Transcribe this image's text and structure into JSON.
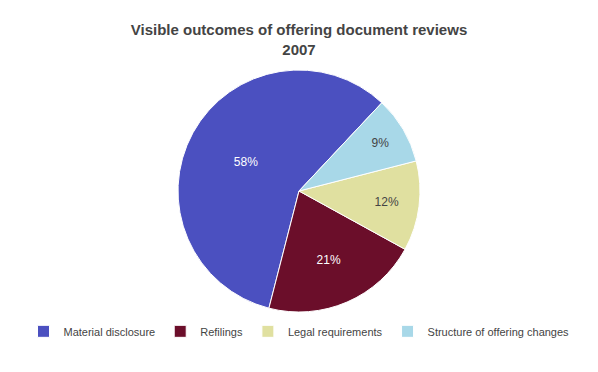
{
  "chart_data": {
    "type": "pie",
    "title": "Visible outcomes of offering document reviews\n2007",
    "categories": [
      "Material disclosure",
      "Refilings",
      "Legal requirements",
      "Structure of offering changes"
    ],
    "values": [
      58,
      21,
      12,
      9
    ],
    "value_labels": [
      "58%",
      "21%",
      "12%",
      "9%"
    ],
    "colors": [
      "#4B50C0",
      "#6B0E2A",
      "#E0E0A0",
      "#A8D8E8"
    ],
    "data_labels": true,
    "legend": "bottom"
  }
}
